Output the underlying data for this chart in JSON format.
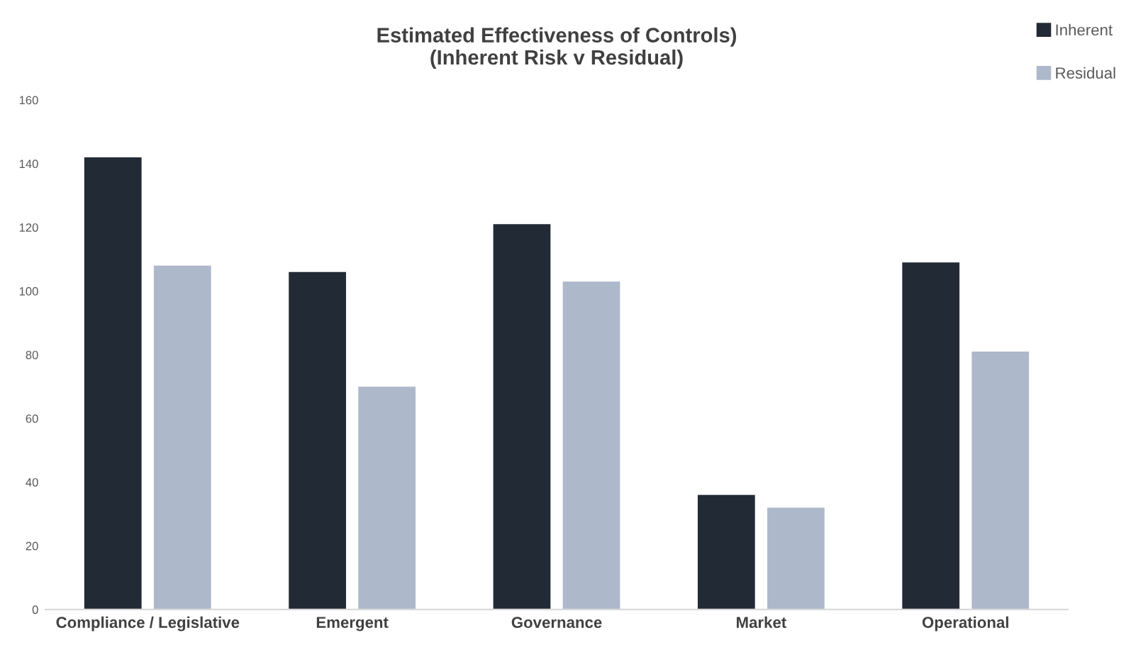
{
  "chart_data": {
    "type": "bar",
    "title": "Estimated Effectiveness of Controls)\n(Inherent Risk v Residual)",
    "categories": [
      "Compliance / Legislative",
      "Emergent",
      "Governance",
      "Market",
      "Operational"
    ],
    "series": [
      {
        "name": "Inherent",
        "color": "#222a35",
        "values": [
          142,
          106,
          121,
          36,
          109
        ]
      },
      {
        "name": "Residual",
        "color": "#adb9ca",
        "values": [
          108,
          70,
          103,
          32,
          81
        ]
      }
    ],
    "ylim": [
      0,
      160
    ],
    "yticks": [
      0,
      20,
      40,
      60,
      80,
      100,
      120,
      140,
      160
    ],
    "grid": false,
    "legend": "top right"
  }
}
